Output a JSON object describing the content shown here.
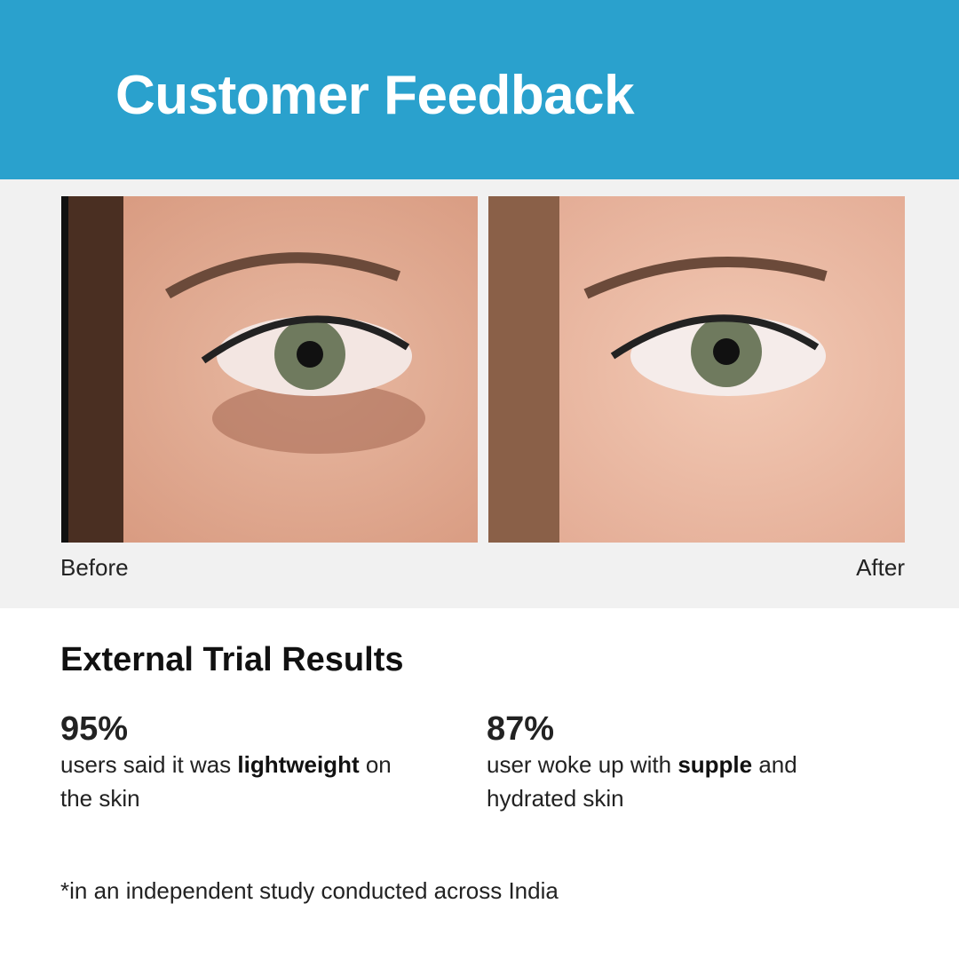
{
  "header": {
    "title": "Customer Feedback",
    "color": "#2aa1cd"
  },
  "comparison": {
    "before_label": "Before",
    "after_label": "After"
  },
  "results": {
    "heading": "External Trial Results",
    "stats": [
      {
        "value": "95%",
        "text_before": "users said it was ",
        "bold": "lightweight",
        "text_after": " on the skin"
      },
      {
        "value": "87%",
        "text_before": "user woke up with ",
        "bold": "supple",
        "text_after": " and hydrated skin"
      }
    ],
    "footnote": "*in an independent study conducted across India"
  }
}
